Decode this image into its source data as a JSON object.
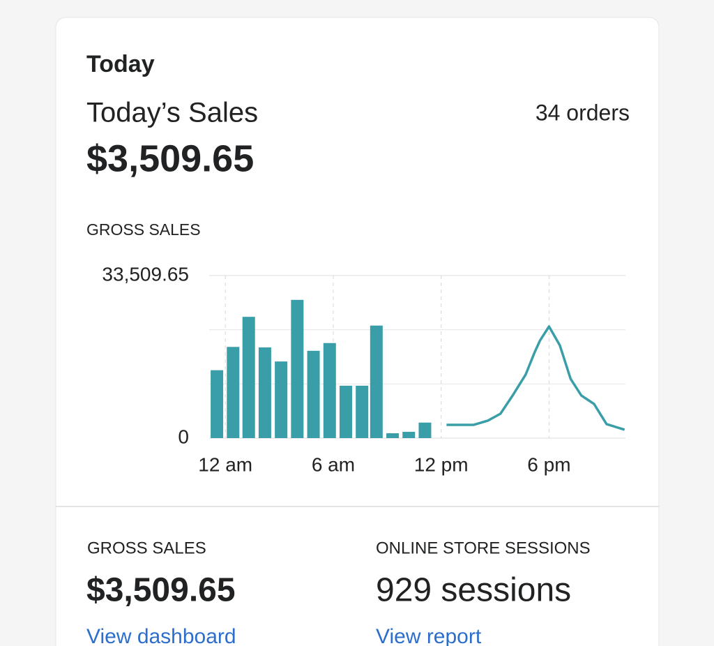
{
  "header": {
    "title": "Today"
  },
  "sales": {
    "label": "Today’s Sales",
    "amount": "$3,509.65",
    "orders": "34 orders"
  },
  "chart_label": "GROSS SALES",
  "chart_data": {
    "type": "bar",
    "xlim": [
      -0.9,
      22.25
    ],
    "xticks": [
      {
        "value": 0,
        "label": "12 am"
      },
      {
        "value": 6,
        "label": "6 am"
      },
      {
        "value": 12,
        "label": "12 pm"
      },
      {
        "value": 18,
        "label": "6 pm"
      }
    ],
    "ylim": [
      0,
      33509.65
    ],
    "yticks": [
      0,
      {
        "value": 33509.65,
        "label": "33,509.65"
      }
    ],
    "grid": true,
    "series": [
      {
        "type": "bar",
        "color": "#3a9ea8",
        "x": [
          -0.47,
          0.43,
          1.3,
          2.2,
          3.1,
          4.0,
          4.9,
          5.8,
          6.7,
          7.6,
          8.4,
          9.3,
          10.2,
          11.1
        ],
        "values": [
          14000,
          18800,
          25000,
          18700,
          15800,
          28500,
          18000,
          19600,
          10800,
          10800,
          23200,
          1000,
          1300,
          3200
        ]
      },
      {
        "type": "line",
        "color": "#3a9ea8",
        "x": [
          12.3,
          13.8,
          14.6,
          15.3,
          16.0,
          16.7,
          17.2,
          17.5,
          18.0,
          18.6,
          19.2,
          19.8,
          20.5,
          21.2,
          22.2
        ],
        "values": [
          2730,
          2730,
          3600,
          5030,
          8920,
          13090,
          17690,
          20130,
          23010,
          19130,
          12220,
          8770,
          7050,
          2880,
          1730
        ]
      }
    ]
  },
  "metrics": [
    {
      "label": "GROSS SALES",
      "value": "$3,509.65",
      "link": "View dashboard"
    },
    {
      "label": "ONLINE STORE SESSIONS",
      "value": "929 sessions",
      "link": "View report"
    }
  ]
}
